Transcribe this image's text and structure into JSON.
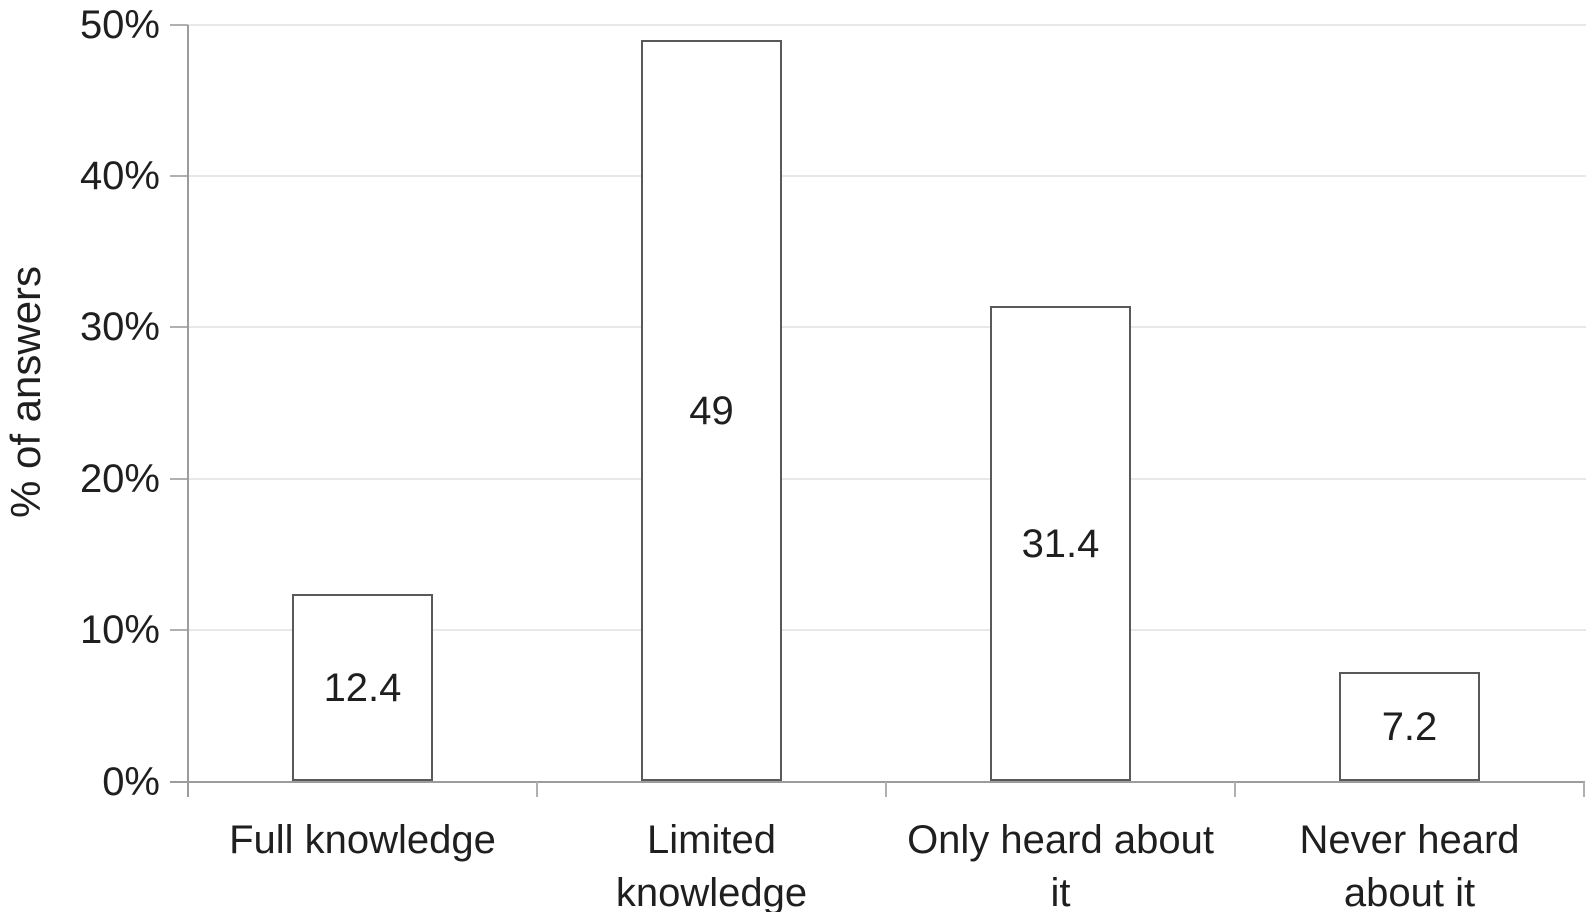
{
  "chart_data": {
    "type": "bar",
    "title": "",
    "categories": [
      "Full knowledge",
      "Limited knowledge",
      "Only heard about it",
      "Never heard about it"
    ],
    "category_label_lines": [
      [
        "Full knowledge"
      ],
      [
        "Limited",
        "knowledge"
      ],
      [
        "Only heard about",
        "it"
      ],
      [
        "Never heard",
        "about it"
      ]
    ],
    "values": [
      12.4,
      49,
      31.4,
      7.2
    ],
    "bar_labels": [
      "12.4",
      "49",
      "31.4",
      "7.2"
    ],
    "xlabel": "",
    "ylabel": "% of answers",
    "ylim": [
      0,
      50
    ],
    "ytick_step": 10,
    "ytick_labels": [
      "0%",
      "10%",
      "20%",
      "30%",
      "40%",
      "50%"
    ],
    "grid": "horizontal-only",
    "legend": "none",
    "bar_label_position": "inside-center",
    "colors": {
      "background": "#ffffff",
      "bar_fill": "#ffffff",
      "bar_border": "#595959",
      "grid": "#e8e8e8",
      "axis": "#9c9c9c",
      "tick": "#b0b0b0",
      "text": "#1f1f1f"
    }
  }
}
